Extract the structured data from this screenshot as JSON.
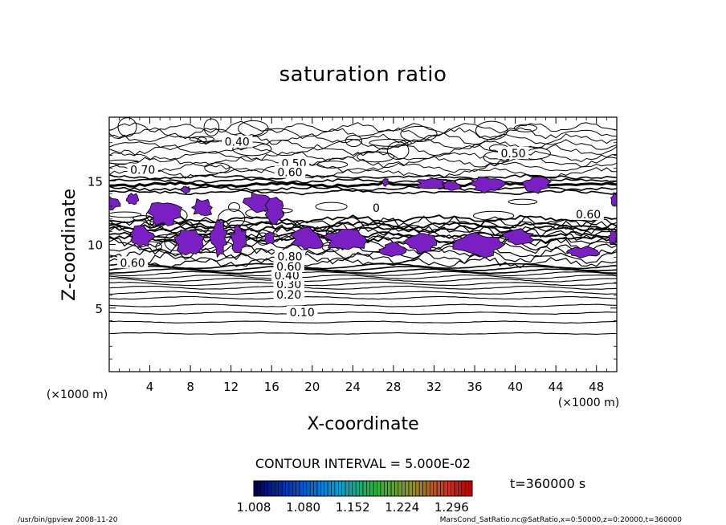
{
  "chart_data": {
    "type": "contour",
    "title": "saturation ratio",
    "xlabel": "X-coordinate",
    "ylabel": "Z-coordinate",
    "x_unit": "(×1000 m)",
    "y_unit": "(×1000 m)",
    "x_ticks": [
      "4",
      "8",
      "12",
      "16",
      "20",
      "24",
      "28",
      "32",
      "36",
      "40",
      "44",
      "48"
    ],
    "x_tick_values": [
      4,
      8,
      12,
      16,
      20,
      24,
      28,
      32,
      36,
      40,
      44,
      48
    ],
    "y_ticks": [
      "5",
      "10",
      "15"
    ],
    "y_tick_values": [
      5,
      10,
      15
    ],
    "xlim": [
      0,
      50
    ],
    "ylim": [
      0,
      20
    ],
    "contour_interval_text": "CONTOUR INTERVAL = 5.000E-02",
    "contour_labels": [
      {
        "text": "0.10",
        "x": 19.0,
        "z": 4.6
      },
      {
        "text": "0.20",
        "x": 17.7,
        "z": 6.0
      },
      {
        "text": "0.30",
        "x": 17.7,
        "z": 6.8
      },
      {
        "text": "0.40",
        "x": 17.5,
        "z": 7.5
      },
      {
        "text": "0.60",
        "x": 17.7,
        "z": 8.2
      },
      {
        "text": "0.80",
        "x": 17.8,
        "z": 9.0
      },
      {
        "text": "0.60",
        "x": 2.3,
        "z": 8.5
      },
      {
        "text": "0.70",
        "x": 3.3,
        "z": 15.8
      },
      {
        "text": "0.40",
        "x": 12.6,
        "z": 18.0
      },
      {
        "text": "0.50",
        "x": 18.2,
        "z": 16.3
      },
      {
        "text": "0.60",
        "x": 17.8,
        "z": 15.6
      },
      {
        "text": "0.50",
        "x": 39.8,
        "z": 17.1
      },
      {
        "text": "0.60",
        "x": 47.2,
        "z": 12.3
      },
      {
        "text": "0",
        "x": 26.3,
        "z": 12.8
      }
    ],
    "shade_color": "#7a1fc4",
    "colorbar": {
      "tick_labels": [
        "1.008",
        "1.080",
        "1.152",
        "1.224",
        "1.296"
      ],
      "tick_values": [
        1.008,
        1.08,
        1.152,
        1.224,
        1.296
      ],
      "range": [
        1.008,
        1.326
      ]
    },
    "time_label": "t=360000 s",
    "footer_left": "/usr/bin/gpview   2008-11-20",
    "footer_right": "MarsCond_SatRatio.nc@SatRatio,x=0:50000,z=0:20000,t=360000",
    "grid": false,
    "legend_position": "bottom-center"
  }
}
